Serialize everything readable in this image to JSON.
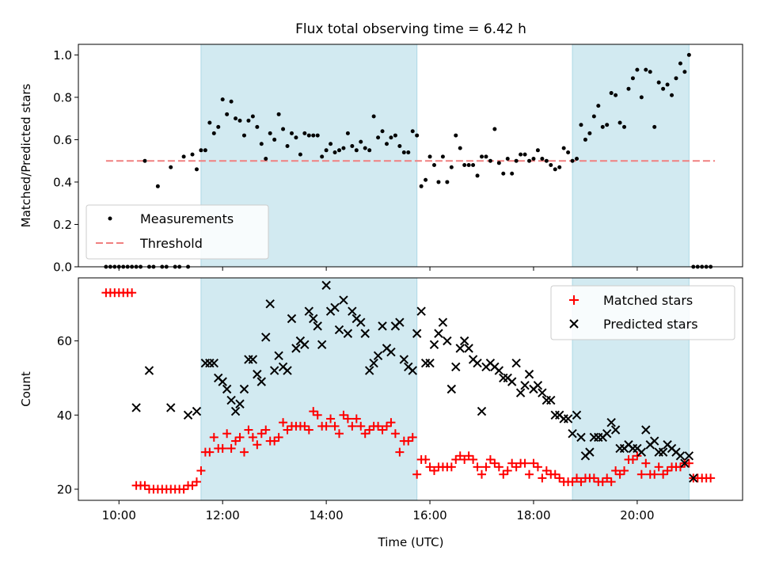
{
  "title": "Flux total observing time = 6.42 h",
  "colors": {
    "shade": "#add8e6",
    "measure": "#000000",
    "threshold": "#f08080",
    "matched": "#ff0000",
    "predicted": "#000000"
  },
  "chart_data": [
    {
      "type": "scatter",
      "ylabel": "Matched/Predicted stars",
      "xlabel": "",
      "xlim": [
        "09:13",
        "22:02"
      ],
      "ylim": [
        0,
        1.05
      ],
      "yticks": [
        0.0,
        0.2,
        0.4,
        0.6,
        0.8,
        1.0
      ],
      "ytick_labels": [
        "0.0",
        "0.2",
        "0.4",
        "0.6",
        "0.8",
        "1.0"
      ],
      "xtick_labels": [],
      "shaded_intervals": [
        [
          "11:35",
          "15:45"
        ],
        [
          "18:45",
          "21:00"
        ]
      ],
      "legend": {
        "position": "lower-left",
        "entries": [
          "Measurements",
          "Threshold"
        ]
      },
      "threshold": {
        "name": "Threshold",
        "value": 0.5,
        "x_range": [
          "09:45",
          "21:30"
        ],
        "style": "dashed"
      },
      "series": [
        {
          "name": "Measurements",
          "marker": "dot",
          "x": [
            "09:45",
            "09:50",
            "09:55",
            "10:00",
            "10:05",
            "10:10",
            "10:15",
            "10:20",
            "10:25",
            "10:30",
            "10:35",
            "10:40",
            "10:45",
            "10:50",
            "10:55",
            "11:00",
            "11:05",
            "11:10",
            "11:15",
            "11:20",
            "11:25",
            "11:30",
            "11:35",
            "11:40",
            "11:45",
            "11:50",
            "11:55",
            "12:00",
            "12:05",
            "12:10",
            "12:15",
            "12:20",
            "12:25",
            "12:30",
            "12:35",
            "12:40",
            "12:45",
            "12:50",
            "12:55",
            "13:00",
            "13:05",
            "13:10",
            "13:15",
            "13:20",
            "13:25",
            "13:30",
            "13:35",
            "13:40",
            "13:45",
            "13:50",
            "13:55",
            "14:00",
            "14:05",
            "14:10",
            "14:15",
            "14:20",
            "14:25",
            "14:30",
            "14:35",
            "14:40",
            "14:45",
            "14:50",
            "14:55",
            "15:00",
            "15:05",
            "15:10",
            "15:15",
            "15:20",
            "15:25",
            "15:30",
            "15:35",
            "15:40",
            "15:45",
            "15:50",
            "15:55",
            "16:00",
            "16:05",
            "16:10",
            "16:15",
            "16:20",
            "16:25",
            "16:30",
            "16:35",
            "16:40",
            "16:45",
            "16:50",
            "16:55",
            "17:00",
            "17:05",
            "17:10",
            "17:15",
            "17:20",
            "17:25",
            "17:30",
            "17:35",
            "17:40",
            "17:45",
            "17:50",
            "17:55",
            "18:00",
            "18:05",
            "18:10",
            "18:15",
            "18:20",
            "18:25",
            "18:30",
            "18:35",
            "18:40",
            "18:45",
            "18:50",
            "18:55",
            "19:00",
            "19:05",
            "19:10",
            "19:15",
            "19:20",
            "19:25",
            "19:30",
            "19:35",
            "19:40",
            "19:45",
            "19:50",
            "19:55",
            "20:00",
            "20:05",
            "20:10",
            "20:15",
            "20:20",
            "20:25",
            "20:30",
            "20:35",
            "20:40",
            "20:45",
            "20:50",
            "20:55",
            "21:00",
            "21:05",
            "21:10",
            "21:15",
            "21:20",
            "21:25"
          ],
          "y": [
            0,
            0,
            0,
            0,
            0,
            0,
            0,
            0,
            0,
            0.5,
            0,
            0,
            0.38,
            0,
            0,
            0.47,
            0,
            0,
            0.52,
            0,
            0.53,
            0.46,
            0.55,
            0.55,
            0.68,
            0.63,
            0.66,
            0.79,
            0.72,
            0.78,
            0.7,
            0.69,
            0.62,
            0.69,
            0.71,
            0.66,
            0.58,
            0.51,
            0.63,
            0.6,
            0.72,
            0.65,
            0.57,
            0.63,
            0.61,
            0.53,
            0.63,
            0.62,
            0.62,
            0.62,
            0.52,
            0.55,
            0.58,
            0.54,
            0.55,
            0.56,
            0.63,
            0.57,
            0.55,
            0.59,
            0.56,
            0.55,
            0.71,
            0.61,
            0.64,
            0.58,
            0.61,
            0.62,
            0.57,
            0.54,
            0.54,
            0.64,
            0.62,
            0.38,
            0.41,
            0.52,
            0.48,
            0.4,
            0.52,
            0.4,
            0.47,
            0.62,
            0.56,
            0.48,
            0.48,
            0.48,
            0.43,
            0.52,
            0.52,
            0.5,
            0.65,
            0.49,
            0.44,
            0.51,
            0.44,
            0.5,
            0.53,
            0.53,
            0.5,
            0.51,
            0.55,
            0.51,
            0.5,
            0.48,
            0.46,
            0.47,
            0.56,
            0.54,
            0.5,
            0.51,
            0.67,
            0.6,
            0.63,
            0.71,
            0.76,
            0.66,
            0.67,
            0.82,
            0.81,
            0.68,
            0.66,
            0.84,
            0.89,
            0.93,
            0.8,
            0.93,
            0.92,
            0.66,
            0.87,
            0.84,
            0.86,
            0.81,
            0.89,
            0.96,
            0.92,
            1.0,
            0,
            0,
            0,
            0,
            0
          ]
        }
      ]
    },
    {
      "type": "scatter",
      "ylabel": "Count",
      "xlabel": "Time (UTC)",
      "xlim": [
        "09:13",
        "22:02"
      ],
      "ylim": [
        17,
        77
      ],
      "yticks": [
        20,
        40,
        60
      ],
      "ytick_labels": [
        "20",
        "40",
        "60"
      ],
      "xticks": [
        "10:00",
        "12:00",
        "14:00",
        "16:00",
        "18:00",
        "20:00"
      ],
      "xtick_labels": [
        "10:00",
        "12:00",
        "14:00",
        "16:00",
        "18:00",
        "20:00"
      ],
      "shaded_intervals": [
        [
          "11:35",
          "15:45"
        ],
        [
          "18:45",
          "21:00"
        ]
      ],
      "legend": {
        "position": "top-right",
        "entries": [
          "Matched stars",
          "Predicted stars"
        ]
      },
      "series": [
        {
          "name": "Matched stars",
          "marker": "plus",
          "x": [
            "09:45",
            "09:50",
            "09:55",
            "10:00",
            "10:05",
            "10:10",
            "10:15",
            "10:20",
            "10:25",
            "10:30",
            "10:35",
            "10:40",
            "10:45",
            "10:50",
            "10:55",
            "11:00",
            "11:05",
            "11:10",
            "11:15",
            "11:20",
            "11:25",
            "11:30",
            "11:35",
            "11:40",
            "11:45",
            "11:50",
            "11:55",
            "12:00",
            "12:05",
            "12:10",
            "12:15",
            "12:20",
            "12:25",
            "12:30",
            "12:35",
            "12:40",
            "12:45",
            "12:50",
            "12:55",
            "13:00",
            "13:05",
            "13:10",
            "13:15",
            "13:20",
            "13:25",
            "13:30",
            "13:35",
            "13:40",
            "13:45",
            "13:50",
            "13:55",
            "14:00",
            "14:05",
            "14:10",
            "14:15",
            "14:20",
            "14:25",
            "14:30",
            "14:35",
            "14:40",
            "14:45",
            "14:50",
            "14:55",
            "15:00",
            "15:05",
            "15:10",
            "15:15",
            "15:20",
            "15:25",
            "15:30",
            "15:35",
            "15:40",
            "15:45",
            "15:50",
            "15:55",
            "16:00",
            "16:05",
            "16:10",
            "16:15",
            "16:20",
            "16:25",
            "16:30",
            "16:35",
            "16:40",
            "16:45",
            "16:50",
            "16:55",
            "17:00",
            "17:05",
            "17:10",
            "17:15",
            "17:20",
            "17:25",
            "17:30",
            "17:35",
            "17:40",
            "17:45",
            "17:50",
            "17:55",
            "18:00",
            "18:05",
            "18:10",
            "18:15",
            "18:20",
            "18:25",
            "18:30",
            "18:35",
            "18:40",
            "18:45",
            "18:50",
            "18:55",
            "19:00",
            "19:05",
            "19:10",
            "19:15",
            "19:20",
            "19:25",
            "19:30",
            "19:35",
            "19:40",
            "19:45",
            "19:50",
            "19:55",
            "20:00",
            "20:05",
            "20:10",
            "20:15",
            "20:20",
            "20:25",
            "20:30",
            "20:35",
            "20:40",
            "20:45",
            "20:50",
            "20:55",
            "21:00",
            "21:05",
            "21:10",
            "21:15",
            "21:20",
            "21:25"
          ],
          "y": [
            73,
            73,
            73,
            73,
            73,
            73,
            73,
            21,
            21,
            21,
            20,
            20,
            20,
            20,
            20,
            20,
            20,
            20,
            20,
            21,
            21,
            22,
            25,
            30,
            30,
            34,
            31,
            31,
            35,
            31,
            33,
            34,
            30,
            36,
            34,
            32,
            35,
            36,
            33,
            33,
            34,
            38,
            36,
            37,
            37,
            37,
            37,
            36,
            41,
            40,
            37,
            37,
            39,
            37,
            35,
            40,
            39,
            37,
            39,
            37,
            35,
            36,
            37,
            37,
            36,
            37,
            38,
            35,
            30,
            33,
            33,
            34,
            24,
            28,
            28,
            26,
            25,
            26,
            26,
            26,
            26,
            28,
            29,
            28,
            29,
            28,
            26,
            24,
            26,
            28,
            27,
            26,
            24,
            25,
            27,
            26,
            27,
            27,
            24,
            27,
            26,
            23,
            25,
            24,
            24,
            23,
            22,
            22,
            22,
            23,
            22,
            23,
            23,
            23,
            22,
            22,
            23,
            22,
            25,
            24,
            25,
            28,
            28,
            29,
            24,
            27,
            24,
            24,
            26,
            24,
            25,
            26,
            26,
            26,
            27,
            27,
            23,
            23,
            23,
            23,
            23
          ]
        },
        {
          "name": "Predicted stars",
          "marker": "x",
          "x": [
            "10:20",
            "10:35",
            "11:00",
            "11:20",
            "11:30",
            "11:40",
            "11:45",
            "11:50",
            "11:55",
            "12:00",
            "12:05",
            "12:10",
            "12:15",
            "12:20",
            "12:25",
            "12:30",
            "12:35",
            "12:40",
            "12:45",
            "12:50",
            "12:55",
            "13:00",
            "13:05",
            "13:10",
            "13:15",
            "13:20",
            "13:25",
            "13:30",
            "13:35",
            "13:40",
            "13:45",
            "13:50",
            "13:55",
            "14:00",
            "14:05",
            "14:10",
            "14:15",
            "14:20",
            "14:25",
            "14:30",
            "14:35",
            "14:40",
            "14:45",
            "14:50",
            "14:55",
            "15:00",
            "15:05",
            "15:10",
            "15:15",
            "15:20",
            "15:25",
            "15:30",
            "15:35",
            "15:40",
            "15:45",
            "15:50",
            "15:55",
            "16:00",
            "16:05",
            "16:10",
            "16:15",
            "16:20",
            "16:25",
            "16:30",
            "16:35",
            "16:40",
            "16:45",
            "16:50",
            "16:55",
            "17:00",
            "17:05",
            "17:10",
            "17:15",
            "17:20",
            "17:25",
            "17:30",
            "17:35",
            "17:40",
            "17:45",
            "17:50",
            "17:55",
            "18:00",
            "18:05",
            "18:10",
            "18:15",
            "18:20",
            "18:25",
            "18:30",
            "18:35",
            "18:40",
            "18:45",
            "18:50",
            "18:55",
            "19:00",
            "19:05",
            "19:10",
            "19:15",
            "19:20",
            "19:25",
            "19:30",
            "19:35",
            "19:40",
            "19:45",
            "19:50",
            "19:55",
            "20:00",
            "20:05",
            "20:10",
            "20:15",
            "20:20",
            "20:25",
            "20:30",
            "20:35",
            "20:40",
            "20:45",
            "20:50",
            "20:55",
            "21:00",
            "21:05"
          ],
          "y": [
            42,
            52,
            42,
            40,
            41,
            54,
            54,
            54,
            50,
            49,
            47,
            44,
            41,
            43,
            47,
            55,
            55,
            51,
            49,
            61,
            70,
            52,
            56,
            53,
            52,
            66,
            58,
            60,
            59,
            68,
            66,
            64,
            59,
            75,
            68,
            69,
            63,
            71,
            62,
            68,
            66,
            65,
            62,
            52,
            54,
            56,
            64,
            58,
            57,
            64,
            65,
            55,
            53,
            52,
            62,
            68,
            54,
            54,
            59,
            62,
            65,
            60,
            47,
            53,
            58,
            60,
            58,
            55,
            54,
            41,
            53,
            54,
            53,
            52,
            50,
            50,
            49,
            54,
            46,
            48,
            51,
            47,
            48,
            46,
            44,
            44,
            40,
            40,
            39,
            39,
            35,
            40,
            34,
            29,
            30,
            34,
            34,
            34,
            35,
            38,
            36,
            31,
            31,
            32,
            31,
            31,
            30,
            36,
            32,
            33,
            30,
            30,
            32,
            31,
            30,
            29,
            27,
            29,
            23
          ]
        }
      ]
    }
  ]
}
